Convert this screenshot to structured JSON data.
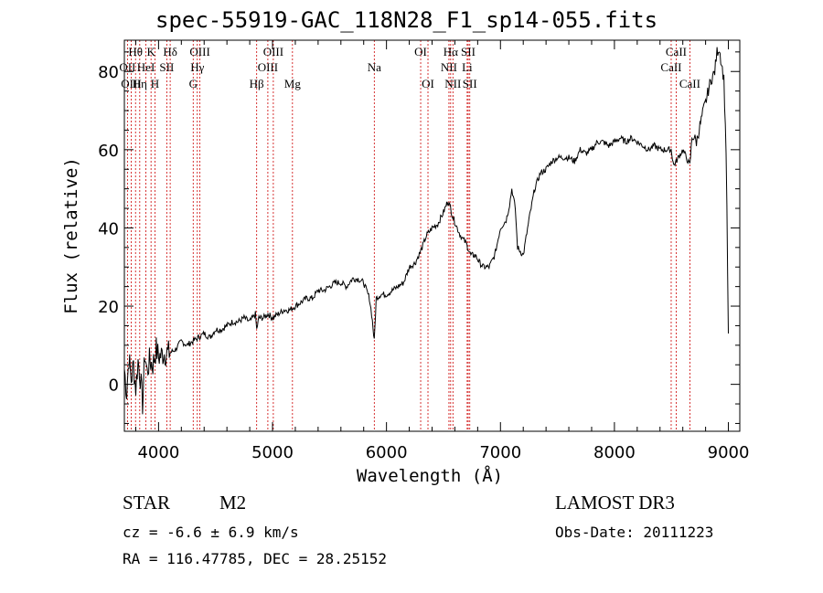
{
  "header": {
    "filename": "spec-55919-GAC_118N28_F1_sp14-055.fits"
  },
  "info": {
    "object_class": "STAR",
    "subclass": "M2",
    "survey": "LAMOST DR3",
    "redshift_text": "cz = -6.6 ± 6.9 km/s",
    "obs_date_text": "Obs-Date: 20111223",
    "coords_text": "RA = 116.47785, DEC =  28.25152"
  },
  "chart_data": {
    "type": "line",
    "title": "spec-55919-GAC_118N28_F1_sp14-055.fits",
    "xlabel": "Wavelength (Å)",
    "ylabel": "Flux (relative)",
    "xlim": [
      3700,
      9100
    ],
    "ylim": [
      -12,
      88
    ],
    "xticks": [
      4000,
      5000,
      6000,
      7000,
      8000,
      9000
    ],
    "yticks": [
      0,
      20,
      40,
      60,
      80
    ],
    "grid": false,
    "series": [
      {
        "name": "spectrum",
        "x": [
          3700,
          3720,
          3740,
          3760,
          3780,
          3800,
          3820,
          3840,
          3860,
          3880,
          3900,
          3920,
          3950,
          3980,
          4000,
          4050,
          4100,
          4150,
          4200,
          4250,
          4300,
          4350,
          4400,
          4450,
          4500,
          4550,
          4600,
          4650,
          4700,
          4750,
          4800,
          4850,
          4861,
          4880,
          4920,
          4960,
          5000,
          5050,
          5100,
          5150,
          5200,
          5250,
          5300,
          5350,
          5400,
          5450,
          5500,
          5550,
          5600,
          5650,
          5700,
          5750,
          5800,
          5850,
          5870,
          5893,
          5910,
          5950,
          6000,
          6050,
          6100,
          6150,
          6200,
          6250,
          6300,
          6350,
          6400,
          6450,
          6500,
          6540,
          6563,
          6580,
          6620,
          6650,
          6700,
          6740,
          6780,
          6820,
          6850,
          6900,
          6950,
          7000,
          7050,
          7080,
          7100,
          7130,
          7150,
          7200,
          7250,
          7300,
          7350,
          7400,
          7450,
          7500,
          7550,
          7600,
          7650,
          7700,
          7750,
          7800,
          7850,
          7900,
          7950,
          8000,
          8050,
          8100,
          8150,
          8200,
          8250,
          8300,
          8350,
          8400,
          8450,
          8498,
          8520,
          8542,
          8560,
          8600,
          8662,
          8680,
          8700,
          8720,
          8750,
          8780,
          8800,
          8830,
          8850,
          8880,
          8900,
          8920,
          8940,
          8960,
          8980,
          9000
        ],
        "values": [
          4,
          -2,
          7,
          1,
          5,
          -1,
          6,
          2,
          -5,
          8,
          3,
          6,
          5,
          9,
          7,
          8,
          8,
          9,
          11,
          10,
          11,
          12,
          13,
          12,
          14,
          14,
          15,
          16,
          16,
          17,
          16,
          18,
          14,
          17,
          17,
          18,
          17,
          18,
          19,
          19,
          20,
          21,
          22,
          22,
          24,
          24,
          25,
          26,
          26,
          25,
          27,
          27,
          26,
          22,
          18,
          11,
          22,
          23,
          23,
          24,
          25,
          26,
          30,
          31,
          34,
          38,
          40,
          41,
          44,
          47,
          45,
          43,
          40,
          38,
          36,
          33,
          33,
          31,
          30,
          30,
          33,
          40,
          42,
          46,
          50,
          45,
          35,
          33,
          42,
          50,
          54,
          55,
          57,
          58,
          58,
          58,
          57,
          60,
          59,
          60,
          62,
          62,
          61,
          62,
          63,
          62,
          63,
          62,
          61,
          60,
          61,
          60,
          60,
          60,
          56,
          57,
          58,
          60,
          56,
          63,
          63,
          62,
          66,
          70,
          72,
          76,
          78,
          80,
          85,
          86,
          82,
          78,
          60,
          13
        ]
      }
    ],
    "lines": [
      {
        "name": "Hθ",
        "wl": 3798,
        "row": 1
      },
      {
        "name": "K",
        "wl": 3934,
        "row": 1
      },
      {
        "name": "Hδ",
        "wl": 4102,
        "row": 1
      },
      {
        "name": "OIII",
        "wl": 4363,
        "row": 1
      },
      {
        "name": "OIII",
        "wl": 5007,
        "row": 1
      },
      {
        "name": "OI",
        "wl": 6300,
        "row": 1
      },
      {
        "name": "Hα",
        "wl": 6563,
        "row": 1
      },
      {
        "name": "SII",
        "wl": 6717,
        "row": 1
      },
      {
        "name": "CaII",
        "wl": 8542,
        "row": 1
      },
      {
        "name": "OII",
        "wl": 3727,
        "row": 2
      },
      {
        "name": "HeI",
        "wl": 3889,
        "row": 2
      },
      {
        "name": "SII",
        "wl": 4072,
        "row": 2
      },
      {
        "name": "Hγ",
        "wl": 4340,
        "row": 2
      },
      {
        "name": "OIII",
        "wl": 4959,
        "row": 2
      },
      {
        "name": "Na",
        "wl": 5893,
        "row": 2
      },
      {
        "name": "NII",
        "wl": 6548,
        "row": 2
      },
      {
        "name": "Li",
        "wl": 6708,
        "row": 2
      },
      {
        "name": "CaII",
        "wl": 8498,
        "row": 2
      },
      {
        "name": "OIII",
        "wl": 3760,
        "row": 3
      },
      {
        "name": "Hη",
        "wl": 3835,
        "row": 3
      },
      {
        "name": "H",
        "wl": 3968,
        "row": 3
      },
      {
        "name": "G",
        "wl": 4304,
        "row": 3
      },
      {
        "name": "Hβ",
        "wl": 4861,
        "row": 3
      },
      {
        "name": "Mg",
        "wl": 5175,
        "row": 3
      },
      {
        "name": "OI",
        "wl": 6364,
        "row": 3
      },
      {
        "name": "NII",
        "wl": 6583,
        "row": 3
      },
      {
        "name": "SII",
        "wl": 6731,
        "row": 3
      },
      {
        "name": "CaII",
        "wl": 8662,
        "row": 3
      }
    ],
    "colors": {
      "spectrum": "#000000",
      "line_marker": "#cc0000",
      "axes": "#000000"
    }
  }
}
